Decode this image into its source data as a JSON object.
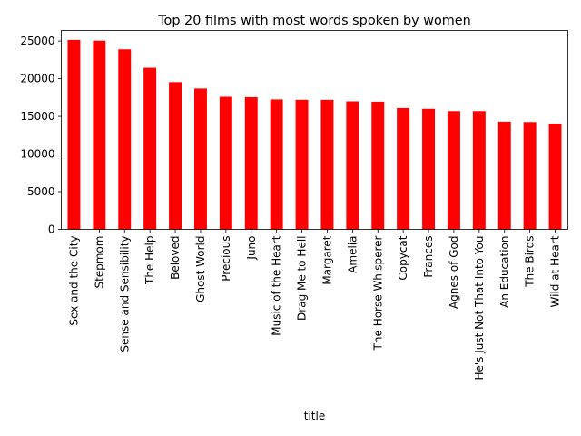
{
  "chart_data": {
    "type": "bar",
    "title": "Top 20 films with most words spoken by women",
    "xlabel": "title",
    "ylabel": "",
    "categories": [
      "Sex and the City",
      "Stepmom",
      "Sense and Sensibility",
      "The Help",
      "Beloved",
      "Ghost World",
      "Precious",
      "Juno",
      "Music of the Heart",
      "Drag Me to Hell",
      "Margaret",
      "Amelia",
      "The Horse Whisperer",
      "Copycat",
      "Frances",
      "Agnes of God",
      "He's Just Not That Into You",
      "An Education",
      "The Birds",
      "Wild at Heart"
    ],
    "values": [
      25150,
      25050,
      23900,
      21450,
      19550,
      18700,
      17600,
      17550,
      17250,
      17200,
      17200,
      17000,
      16950,
      16100,
      16000,
      15700,
      15700,
      14300,
      14250,
      14050
    ],
    "ylim": [
      0,
      26400
    ],
    "yticks": [
      0,
      5000,
      10000,
      15000,
      20000,
      25000
    ],
    "bar_color": "#ff0000",
    "grid": false,
    "legend": "none"
  }
}
